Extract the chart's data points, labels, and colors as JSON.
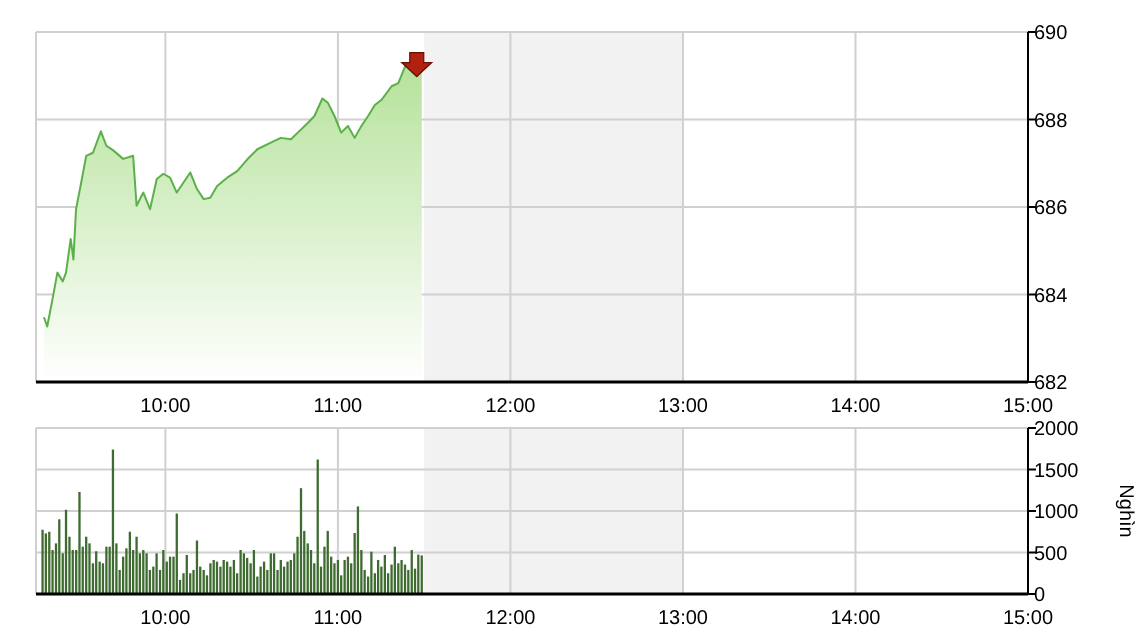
{
  "chart_data": [
    {
      "type": "area",
      "color": "#5cb04a",
      "x": [
        9.296,
        9.315,
        9.346,
        9.374,
        9.405,
        9.424,
        9.451,
        9.467,
        9.482,
        9.514,
        9.541,
        9.58,
        9.626,
        9.658,
        9.696,
        9.755,
        9.813,
        9.833,
        9.872,
        9.911,
        9.95,
        9.988,
        10.027,
        10.066,
        10.105,
        10.144,
        10.183,
        10.222,
        10.26,
        10.3,
        10.358,
        10.416,
        10.475,
        10.533,
        10.611,
        10.669,
        10.728,
        10.767,
        10.825,
        10.864,
        10.91,
        10.942,
        10.98,
        11.019,
        11.058,
        11.097,
        11.136,
        11.175,
        11.214,
        11.253,
        11.311,
        11.35,
        11.389,
        11.436,
        11.486
      ],
      "values": [
        683.48,
        683.27,
        683.9,
        684.5,
        684.3,
        684.5,
        685.27,
        684.8,
        685.95,
        686.6,
        687.17,
        687.24,
        687.73,
        687.4,
        687.3,
        687.1,
        687.17,
        686.03,
        686.33,
        685.95,
        686.64,
        686.76,
        686.67,
        686.33,
        686.56,
        686.79,
        686.41,
        686.18,
        686.21,
        686.48,
        686.67,
        686.82,
        687.09,
        687.32,
        687.47,
        687.58,
        687.55,
        687.7,
        687.92,
        688.08,
        688.48,
        688.38,
        688.08,
        687.7,
        687.85,
        687.58,
        687.85,
        688.08,
        688.33,
        688.45,
        688.76,
        688.83,
        689.21,
        689.29,
        689.21
      ],
      "xlim": [
        9.25,
        15
      ],
      "xticks": [
        {
          "value": 10,
          "label": "10:00"
        },
        {
          "value": 11,
          "label": "11:00"
        },
        {
          "value": 12,
          "label": "12:00"
        },
        {
          "value": 13,
          "label": "13:00"
        },
        {
          "value": 14,
          "label": "14:00"
        },
        {
          "value": 15,
          "label": "15:00"
        }
      ],
      "ylim": [
        682,
        690
      ],
      "yticks": [
        682,
        684,
        686,
        688,
        690
      ],
      "grid": true,
      "bands": [
        {
          "axis": "x",
          "from": 11.5,
          "to": 13,
          "color": "#f2f2f2"
        }
      ]
    },
    {
      "type": "bar",
      "color": "#3e6b30",
      "ylabel": "Nghìn",
      "x": [
        9.288,
        9.307,
        9.327,
        9.346,
        9.366,
        9.385,
        9.405,
        9.424,
        9.444,
        9.463,
        9.483,
        9.502,
        9.521,
        9.541,
        9.56,
        9.58,
        9.599,
        9.619,
        9.638,
        9.658,
        9.677,
        9.696,
        9.716,
        9.735,
        9.755,
        9.774,
        9.794,
        9.813,
        9.833,
        9.852,
        9.872,
        9.891,
        9.91,
        9.93,
        9.949,
        9.969,
        9.988,
        10.008,
        10.027,
        10.047,
        10.066,
        10.085,
        10.105,
        10.124,
        10.144,
        10.163,
        10.183,
        10.202,
        10.222,
        10.241,
        10.261,
        10.28,
        10.299,
        10.319,
        10.338,
        10.358,
        10.377,
        10.397,
        10.416,
        10.436,
        10.455,
        10.474,
        10.494,
        10.513,
        10.533,
        10.552,
        10.572,
        10.591,
        10.611,
        10.63,
        10.65,
        10.669,
        10.688,
        10.708,
        10.727,
        10.747,
        10.766,
        10.786,
        10.805,
        10.825,
        10.844,
        10.863,
        10.883,
        10.902,
        10.922,
        10.941,
        10.961,
        10.98,
        11.0,
        11.019,
        11.039,
        11.058,
        11.077,
        11.097,
        11.116,
        11.136,
        11.155,
        11.175,
        11.194,
        11.214,
        11.233,
        11.252,
        11.272,
        11.291,
        11.311,
        11.33,
        11.35,
        11.369,
        11.389,
        11.408,
        11.428,
        11.447,
        11.466,
        11.486
      ],
      "values": [
        774,
        730,
        750,
        530,
        610,
        900,
        490,
        1015,
        690,
        530,
        530,
        1230,
        570,
        690,
        610,
        370,
        515,
        390,
        370,
        570,
        570,
        1740,
        610,
        290,
        450,
        550,
        750,
        530,
        690,
        490,
        530,
        490,
        290,
        330,
        490,
        290,
        530,
        390,
        450,
        450,
        970,
        170,
        250,
        470,
        250,
        290,
        645,
        330,
        290,
        225,
        370,
        410,
        390,
        330,
        410,
        390,
        330,
        410,
        250,
        530,
        490,
        435,
        370,
        530,
        210,
        330,
        390,
        290,
        490,
        490,
        290,
        410,
        330,
        390,
        410,
        490,
        690,
        1275,
        760,
        610,
        530,
        370,
        1620,
        330,
        570,
        760,
        450,
        370,
        410,
        225,
        410,
        450,
        370,
        735,
        1055,
        530,
        290,
        210,
        510,
        250,
        410,
        330,
        470,
        250,
        355,
        570,
        370,
        410,
        355,
        290,
        530,
        305,
        475,
        465
      ],
      "xlim": [
        9.25,
        15
      ],
      "xticks": [
        {
          "value": 10,
          "label": "10:00"
        },
        {
          "value": 11,
          "label": "11:00"
        },
        {
          "value": 12,
          "label": "12:00"
        },
        {
          "value": 13,
          "label": "13:00"
        },
        {
          "value": 14,
          "label": "14:00"
        },
        {
          "value": 15,
          "label": "15:00"
        }
      ],
      "ylim": [
        0,
        2000
      ],
      "yticks": [
        0,
        500,
        1000,
        1500,
        2000
      ],
      "grid": true,
      "bands": [
        {
          "axis": "x",
          "from": 11.5,
          "to": 13,
          "color": "#f2f2f2"
        }
      ]
    }
  ]
}
